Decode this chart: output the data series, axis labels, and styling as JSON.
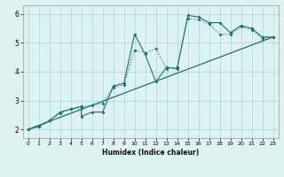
{
  "xlabel": "Humidex (Indice chaleur)",
  "bg_color": "#dff2f2",
  "grid_color": "#aed4d4",
  "line_color": "#1e7070",
  "xlim": [
    -0.5,
    23.5
  ],
  "ylim": [
    1.7,
    6.3
  ],
  "xticks": [
    0,
    1,
    2,
    3,
    4,
    5,
    6,
    7,
    8,
    9,
    10,
    11,
    12,
    13,
    14,
    15,
    16,
    17,
    18,
    19,
    20,
    21,
    22,
    23
  ],
  "yticks": [
    2,
    3,
    4,
    5,
    6
  ],
  "line_trend_x": [
    0,
    23
  ],
  "line_trend_y": [
    2.0,
    5.2
  ],
  "line_jagged_x": [
    0,
    1,
    2,
    3,
    4,
    5,
    5,
    6,
    7,
    8,
    9,
    10,
    11,
    12,
    13,
    14,
    15,
    16,
    17,
    18,
    19,
    20,
    21,
    22,
    23
  ],
  "line_jagged_y": [
    2.0,
    2.1,
    2.3,
    2.6,
    2.7,
    2.8,
    2.45,
    2.6,
    2.6,
    3.5,
    3.6,
    5.3,
    4.6,
    3.65,
    4.15,
    4.1,
    5.95,
    5.9,
    5.7,
    5.7,
    5.35,
    5.6,
    5.5,
    5.2,
    5.2
  ],
  "line_dotted_x": [
    0,
    1,
    2,
    3,
    4,
    5,
    6,
    7,
    8,
    9,
    10,
    11,
    12,
    13,
    14,
    15,
    16,
    17,
    18,
    19,
    20,
    21,
    22,
    23
  ],
  "line_dotted_y": [
    2.0,
    2.1,
    2.3,
    2.55,
    2.7,
    2.75,
    2.85,
    2.9,
    3.45,
    3.55,
    4.75,
    4.65,
    4.8,
    4.1,
    4.15,
    5.85,
    5.8,
    5.65,
    5.3,
    5.3,
    5.55,
    5.45,
    5.15,
    5.2
  ]
}
